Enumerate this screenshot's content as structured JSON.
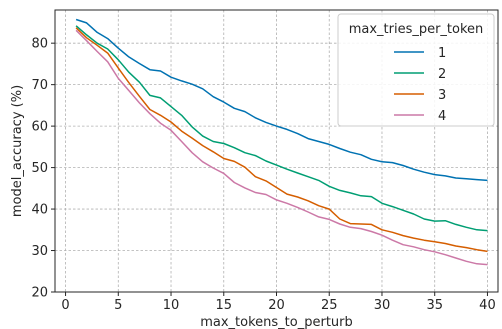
{
  "chart_data": {
    "type": "line",
    "title": "",
    "xlabel": "max_tokens_to_perturb",
    "ylabel": "model_accuracy (%)",
    "xlim": [
      -1,
      41
    ],
    "ylim": [
      20,
      88
    ],
    "x_ticks": [
      0,
      5,
      10,
      15,
      20,
      25,
      30,
      35,
      40
    ],
    "y_ticks": [
      20,
      30,
      40,
      50,
      60,
      70,
      80
    ],
    "grid": true,
    "legend": {
      "title": "max_tries_per_token",
      "placement": "top-right"
    },
    "x": [
      1,
      2,
      3,
      4,
      5,
      6,
      7,
      8,
      9,
      10,
      11,
      12,
      13,
      14,
      15,
      16,
      17,
      18,
      19,
      20,
      21,
      22,
      23,
      24,
      25,
      26,
      27,
      28,
      29,
      30,
      31,
      32,
      33,
      34,
      35,
      36,
      37,
      38,
      39,
      40
    ],
    "series": [
      {
        "name": "1",
        "color": "#0072b2",
        "values": [
          85.7,
          84.9,
          82.6,
          81.1,
          78.8,
          76.7,
          75.1,
          73.6,
          73.3,
          71.8,
          70.9,
          70.1,
          69.0,
          67.1,
          65.8,
          64.3,
          63.5,
          62.0,
          60.9,
          60.0,
          59.2,
          58.2,
          57.0,
          56.3,
          55.6,
          54.6,
          53.7,
          53.1,
          52.0,
          51.4,
          51.2,
          50.5,
          49.6,
          48.9,
          48.3,
          48.0,
          47.5,
          47.3,
          47.1,
          46.9
        ]
      },
      {
        "name": "2",
        "color": "#009e73",
        "values": [
          84.2,
          82.0,
          80.0,
          78.6,
          76.0,
          73.0,
          70.6,
          67.4,
          66.8,
          64.7,
          62.6,
          59.8,
          57.6,
          56.3,
          55.8,
          54.8,
          53.6,
          52.9,
          51.6,
          50.6,
          49.6,
          48.7,
          47.8,
          46.9,
          45.5,
          44.5,
          43.9,
          43.2,
          43.0,
          41.4,
          40.6,
          39.7,
          38.8,
          37.6,
          37.1,
          37.2,
          36.3,
          35.6,
          35.0,
          34.8
        ]
      },
      {
        "name": "3",
        "color": "#d55e00",
        "values": [
          83.7,
          81.3,
          79.5,
          77.6,
          74.0,
          70.5,
          67.2,
          64.0,
          62.6,
          61.0,
          58.8,
          57.1,
          55.3,
          53.8,
          52.2,
          51.5,
          50.1,
          47.8,
          46.8,
          45.2,
          43.6,
          42.9,
          42.0,
          40.8,
          40.0,
          37.6,
          36.5,
          36.4,
          36.3,
          35.0,
          34.4,
          33.6,
          33.0,
          32.5,
          32.1,
          31.7,
          31.1,
          30.7,
          30.2,
          29.8
        ]
      },
      {
        "name": "4",
        "color": "#cc79a7",
        "values": [
          83.1,
          80.6,
          78.0,
          75.5,
          71.5,
          68.6,
          65.6,
          63.0,
          60.7,
          59.0,
          56.3,
          53.6,
          51.4,
          49.9,
          48.6,
          46.4,
          45.1,
          44.0,
          43.5,
          42.2,
          41.4,
          40.4,
          39.3,
          38.1,
          37.5,
          36.4,
          35.6,
          35.3,
          34.6,
          33.7,
          32.5,
          31.4,
          30.9,
          30.2,
          29.7,
          29.0,
          28.2,
          27.4,
          26.8,
          26.6
        ]
      }
    ]
  }
}
